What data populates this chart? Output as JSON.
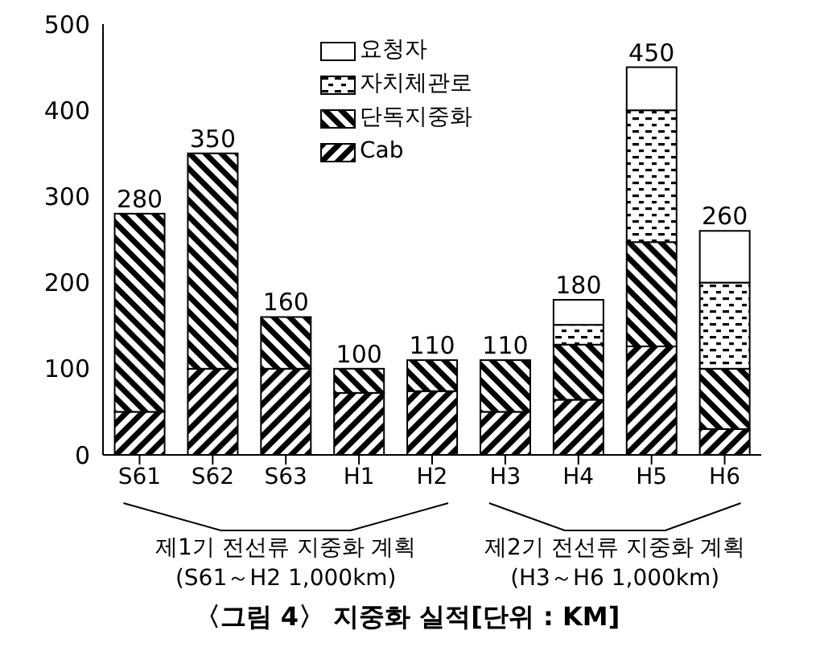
{
  "chart_data": {
    "type": "bar",
    "stacked": true,
    "title": "〈그림 4〉 지중화 실적[단위 : KM]",
    "categories": [
      "S61",
      "S62",
      "S63",
      "H1",
      "H2",
      "H3",
      "H4",
      "H5",
      "H6"
    ],
    "series": [
      {
        "name": "Cab",
        "color": "#000000",
        "values": [
          50,
          100,
          100,
          72,
          74,
          50,
          64,
          126,
          30
        ]
      },
      {
        "name": "단독지중화",
        "color": "#000000",
        "values": [
          230,
          250,
          60,
          28,
          36,
          60,
          64,
          121,
          70
        ]
      },
      {
        "name": "자치체관로",
        "color": "#000000",
        "values": [
          0,
          0,
          0,
          0,
          0,
          0,
          23,
          153,
          100
        ]
      },
      {
        "name": "요청자",
        "color": "#000000",
        "values": [
          0,
          0,
          0,
          0,
          0,
          0,
          29,
          50,
          60
        ]
      }
    ],
    "totals": [
      "280",
      "350",
      "160",
      "100",
      "110",
      "110",
      "180",
      "450",
      "260"
    ],
    "ylim": [
      0,
      500
    ],
    "yticks": [
      0,
      100,
      200,
      300,
      400,
      500
    ],
    "grid": false,
    "legend": "top",
    "annotations": [
      "제1기 전선류 지중화 계획\n(S61～H2 1,000km)",
      "제2기 전선류 지중화 계획\n(H3～H6 1,000km)"
    ]
  }
}
